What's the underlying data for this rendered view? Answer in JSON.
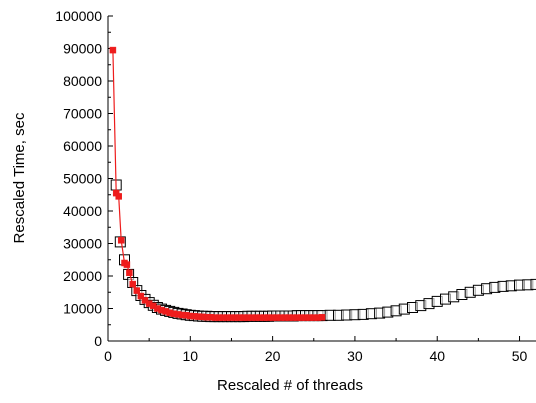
{
  "chart_data": {
    "type": "scatter",
    "xlabel": "Rescaled # of  threads",
    "ylabel": "Rescaled Time, sec",
    "xlim": [
      0,
      52
    ],
    "ylim": [
      0,
      100000
    ],
    "x_ticks": [
      0,
      10,
      20,
      30,
      40,
      50
    ],
    "y_ticks": [
      0,
      10000,
      20000,
      30000,
      40000,
      50000,
      60000,
      70000,
      80000,
      90000,
      100000
    ],
    "grid": false,
    "legend": "none",
    "series": [
      {
        "marker": "open-square",
        "color": "#000000",
        "line": false,
        "x": [
          1.0,
          1.5,
          2.0,
          2.5,
          3.0,
          3.5,
          4.0,
          4.5,
          5.0,
          5.5,
          6.0,
          6.5,
          7.0,
          7.5,
          8.0,
          8.5,
          9.0,
          9.5,
          10.0,
          10.5,
          11.0,
          11.5,
          12.0,
          12.5,
          13.0,
          13.5,
          14.0,
          14.5,
          15.0,
          15.5,
          16.0,
          16.5,
          17.0,
          17.5,
          18.0,
          18.5,
          19.0,
          19.5,
          20.0,
          20.5,
          21.0,
          21.5,
          22.0,
          22.5,
          23.0,
          23.5,
          24.0,
          24.5,
          25.0,
          25.5,
          26.0,
          27.0,
          28.0,
          29.0,
          30.0,
          31.0,
          32.0,
          33.0,
          34.0,
          35.0,
          36.0,
          37.0,
          38.0,
          39.0,
          40.0,
          41.0,
          42.0,
          43.0,
          44.0,
          45.0,
          46.0,
          47.0,
          48.0,
          49.0,
          50.0,
          51.0,
          52.0
        ],
        "y": [
          48000,
          30500,
          25000,
          20500,
          18000,
          15500,
          14000,
          12800,
          11800,
          11000,
          10300,
          9800,
          9400,
          9100,
          8800,
          8500,
          8300,
          8100,
          7900,
          7800,
          7700,
          7600,
          7600,
          7500,
          7500,
          7500,
          7500,
          7500,
          7500,
          7500,
          7500,
          7500,
          7600,
          7600,
          7600,
          7600,
          7600,
          7600,
          7700,
          7700,
          7700,
          7700,
          7700,
          7700,
          7800,
          7800,
          7800,
          7800,
          7800,
          7800,
          7800,
          7900,
          7900,
          8000,
          8100,
          8200,
          8400,
          8600,
          8900,
          9300,
          9800,
          10300,
          10900,
          11500,
          12200,
          12900,
          13600,
          14300,
          15000,
          15600,
          16100,
          16500,
          16800,
          17000,
          17200,
          17300,
          17400
        ]
      },
      {
        "marker": "filled-square",
        "color": "#ee1c1c",
        "line": true,
        "x": [
          0.6,
          1.0,
          1.3,
          1.6,
          2.0,
          2.3,
          2.6,
          3.0,
          3.5,
          4.0,
          4.5,
          5.0,
          5.5,
          6.0,
          6.5,
          7.0,
          7.5,
          8.0,
          8.5,
          9.0,
          9.5,
          10.0,
          10.5,
          11.0,
          11.5,
          12.0,
          12.5,
          13.0,
          13.5,
          14.0,
          14.5,
          15.0,
          15.5,
          16.0,
          16.5,
          17.0,
          17.5,
          18.0,
          18.5,
          19.0,
          19.5,
          20.0,
          20.5,
          21.0,
          21.5,
          22.0,
          22.5,
          23.0,
          23.5,
          24.0,
          24.5,
          25.0,
          25.5,
          26.0
        ],
        "y": [
          89500,
          45500,
          44500,
          31000,
          24000,
          23500,
          21000,
          17500,
          15500,
          13800,
          12500,
          11500,
          10800,
          10000,
          9500,
          9100,
          8700,
          8400,
          8200,
          8000,
          7900,
          7700,
          7600,
          7500,
          7400,
          7300,
          7300,
          7200,
          7200,
          7200,
          7200,
          7200,
          7200,
          7200,
          7200,
          7200,
          7200,
          7200,
          7200,
          7200,
          7200,
          7200,
          7200,
          7200,
          7200,
          7200,
          7200,
          7200,
          7200,
          7200,
          7200,
          7200,
          7200,
          7300
        ]
      }
    ]
  }
}
